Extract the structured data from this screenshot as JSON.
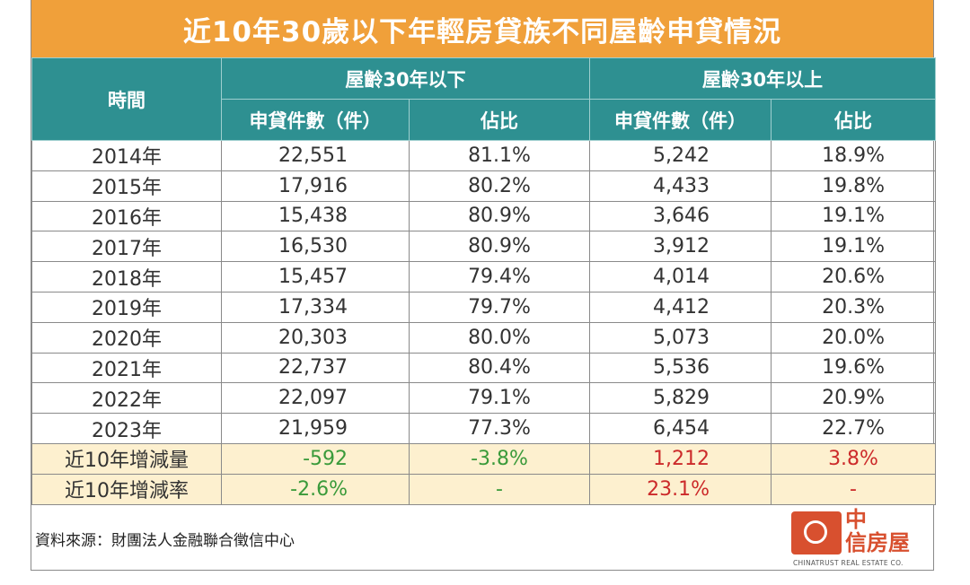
{
  "title": "近10年30歲以下年輕房貸族不同屋齡申貸情況",
  "headers": {
    "time": "時間",
    "group_under": "屋齡30年以下",
    "group_over": "屋齡30年以上",
    "count": "申貸件數（件）",
    "share": "佔比"
  },
  "rows": [
    {
      "year": "2014年",
      "under_count": "22,551",
      "under_share": "81.1%",
      "over_count": "5,242",
      "over_share": "18.9%"
    },
    {
      "year": "2015年",
      "under_count": "17,916",
      "under_share": "80.2%",
      "over_count": "4,433",
      "over_share": "19.8%"
    },
    {
      "year": "2016年",
      "under_count": "15,438",
      "under_share": "80.9%",
      "over_count": "3,646",
      "over_share": "19.1%"
    },
    {
      "year": "2017年",
      "under_count": "16,530",
      "under_share": "80.9%",
      "over_count": "3,912",
      "over_share": "19.1%"
    },
    {
      "year": "2018年",
      "under_count": "15,457",
      "under_share": "79.4%",
      "over_count": "4,014",
      "over_share": "20.6%"
    },
    {
      "year": "2019年",
      "under_count": "17,334",
      "under_share": "79.7%",
      "over_count": "4,412",
      "over_share": "20.3%"
    },
    {
      "year": "2020年",
      "under_count": "20,303",
      "under_share": "80.0%",
      "over_count": "5,073",
      "over_share": "20.0%"
    },
    {
      "year": "2021年",
      "under_count": "22,737",
      "under_share": "80.4%",
      "over_count": "5,536",
      "over_share": "19.6%"
    },
    {
      "year": "2022年",
      "under_count": "22,097",
      "under_share": "79.1%",
      "over_count": "5,829",
      "over_share": "20.9%"
    },
    {
      "year": "2023年",
      "under_count": "21,959",
      "under_share": "77.3%",
      "over_count": "6,454",
      "over_share": "22.7%"
    }
  ],
  "summary": [
    {
      "label": "近10年增減量",
      "under_count": "-592",
      "under_share": "-3.8%",
      "over_count": "1,212",
      "over_share": "3.8%"
    },
    {
      "label": "近10年增減率",
      "under_count": "-2.6%",
      "under_share": "-",
      "over_count": "23.1%",
      "over_share": "-"
    }
  ],
  "source": "資料來源：財團法人金融聯合徵信中心",
  "logo": {
    "name_line1": "中",
    "name_line2": "信房屋",
    "english": "CHINATRUST REAL ESTATE CO."
  },
  "colors": {
    "title_bg": "#f0a03a",
    "header_bg": "#2e9091",
    "summary_bg": "#fdf0cf",
    "negative": "#3a9a3a",
    "positive": "#cc2a2a",
    "brand": "#d8502f"
  },
  "chart_data": {
    "type": "table",
    "title": "近10年30歲以下年輕房貸族不同屋齡申貸情況",
    "columns": [
      "時間",
      "屋齡30年以下 申貸件數（件）",
      "屋齡30年以下 佔比",
      "屋齡30年以上 申貸件數（件）",
      "屋齡30年以上 佔比"
    ],
    "x": [
      "2014年",
      "2015年",
      "2016年",
      "2017年",
      "2018年",
      "2019年",
      "2020年",
      "2021年",
      "2022年",
      "2023年"
    ],
    "series": [
      {
        "name": "屋齡30年以下 申貸件數（件）",
        "values": [
          22551,
          17916,
          15438,
          16530,
          15457,
          17334,
          20303,
          22737,
          22097,
          21959
        ]
      },
      {
        "name": "屋齡30年以下 佔比",
        "values": [
          81.1,
          80.2,
          80.9,
          80.9,
          79.4,
          79.7,
          80.0,
          80.4,
          79.1,
          77.3
        ]
      },
      {
        "name": "屋齡30年以上 申貸件數（件）",
        "values": [
          5242,
          4433,
          3646,
          3912,
          4014,
          4412,
          5073,
          5536,
          5829,
          6454
        ]
      },
      {
        "name": "屋齡30年以上 佔比",
        "values": [
          18.9,
          19.8,
          19.1,
          19.1,
          20.6,
          20.3,
          20.0,
          19.6,
          20.9,
          22.7
        ]
      }
    ]
  }
}
